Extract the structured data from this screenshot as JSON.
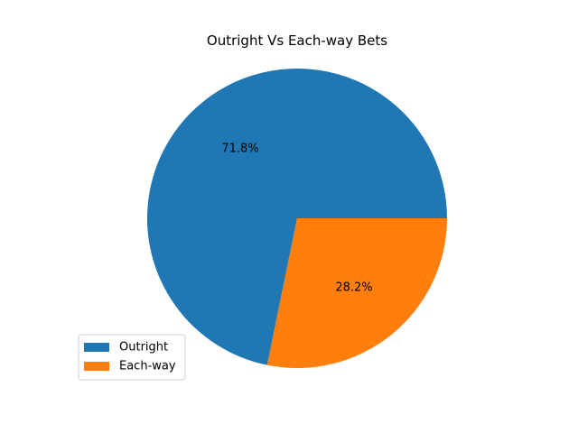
{
  "chart_data": {
    "type": "pie",
    "title": "Outright Vs Each-way Bets",
    "categories": [
      "Outright",
      "Each-way"
    ],
    "values": [
      71.8,
      28.2
    ],
    "labels": [
      "71.8%",
      "28.2%"
    ],
    "colors": [
      "#1f77b4",
      "#ff7f0e"
    ],
    "legend": {
      "placement": "lower-left",
      "entries": [
        "Outright",
        "Each-way"
      ]
    },
    "grid": false
  }
}
